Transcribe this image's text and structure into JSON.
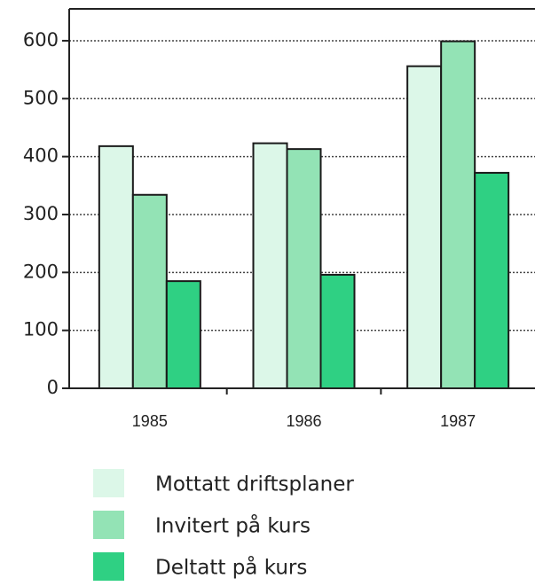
{
  "chart_data": {
    "type": "bar",
    "categories": [
      "1985",
      "1986",
      "1987"
    ],
    "series": [
      {
        "name": "Mottatt driftsplaner",
        "color": "#dcf7e8",
        "values": [
          418,
          423,
          556
        ]
      },
      {
        "name": "Invitert på kurs",
        "color": "#93e3b5",
        "values": [
          334,
          413,
          599
        ]
      },
      {
        "name": "Deltatt på kurs",
        "color": "#2fd083",
        "values": [
          185,
          196,
          372
        ]
      }
    ],
    "ylim": [
      0,
      655
    ],
    "yticks": [
      0,
      100,
      200,
      300,
      400,
      500,
      600
    ],
    "grid": true
  }
}
